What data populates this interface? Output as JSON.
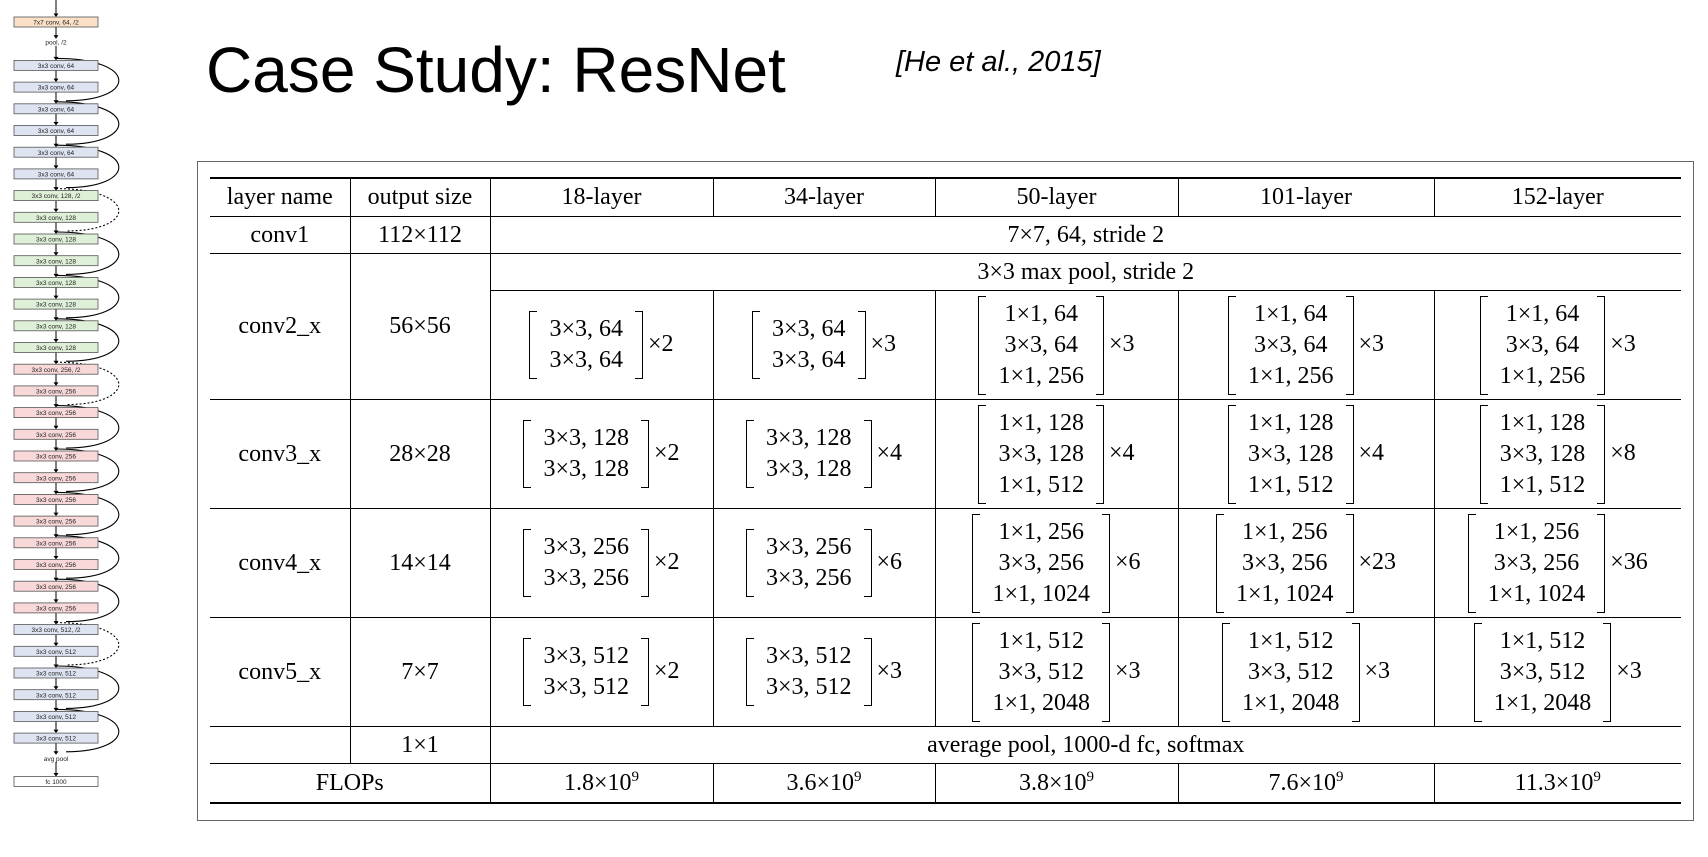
{
  "title": "Case Study: ResNet",
  "citation": "[He et al., 2015]",
  "architecture": {
    "blocks": [
      {
        "label": "7x7 conv, 64, /2",
        "color": "#fbe0c8"
      },
      {
        "label": "pool, /2",
        "color": null
      },
      {
        "label": "3x3 conv, 64",
        "color": "#dde3f0"
      },
      {
        "label": "3x3 conv, 64",
        "color": "#dde3f0"
      },
      {
        "label": "3x3 conv, 64",
        "color": "#dde3f0"
      },
      {
        "label": "3x3 conv, 64",
        "color": "#dde3f0"
      },
      {
        "label": "3x3 conv, 64",
        "color": "#dde3f0"
      },
      {
        "label": "3x3 conv, 64",
        "color": "#dde3f0"
      },
      {
        "label": "3x3 conv, 128, /2",
        "color": "#dff0d8"
      },
      {
        "label": "3x3 conv, 128",
        "color": "#dff0d8"
      },
      {
        "label": "3x3 conv, 128",
        "color": "#dff0d8"
      },
      {
        "label": "3x3 conv, 128",
        "color": "#dff0d8"
      },
      {
        "label": "3x3 conv, 128",
        "color": "#dff0d8"
      },
      {
        "label": "3x3 conv, 128",
        "color": "#dff0d8"
      },
      {
        "label": "3x3 conv, 128",
        "color": "#dff0d8"
      },
      {
        "label": "3x3 conv, 128",
        "color": "#dff0d8"
      },
      {
        "label": "3x3 conv, 256, /2",
        "color": "#f8d8d8"
      },
      {
        "label": "3x3 conv, 256",
        "color": "#f8d8d8"
      },
      {
        "label": "3x3 conv, 256",
        "color": "#f8d8d8"
      },
      {
        "label": "3x3 conv, 256",
        "color": "#f8d8d8"
      },
      {
        "label": "3x3 conv, 256",
        "color": "#f8d8d8"
      },
      {
        "label": "3x3 conv, 256",
        "color": "#f8d8d8"
      },
      {
        "label": "3x3 conv, 256",
        "color": "#f8d8d8"
      },
      {
        "label": "3x3 conv, 256",
        "color": "#f8d8d8"
      },
      {
        "label": "3x3 conv, 256",
        "color": "#f8d8d8"
      },
      {
        "label": "3x3 conv, 256",
        "color": "#f8d8d8"
      },
      {
        "label": "3x3 conv, 256",
        "color": "#f8d8d8"
      },
      {
        "label": "3x3 conv, 256",
        "color": "#f8d8d8"
      },
      {
        "label": "3x3 conv, 512, /2",
        "color": "#dde3f0"
      },
      {
        "label": "3x3 conv, 512",
        "color": "#dde3f0"
      },
      {
        "label": "3x3 conv, 512",
        "color": "#dde3f0"
      },
      {
        "label": "3x3 conv, 512",
        "color": "#dde3f0"
      },
      {
        "label": "3x3 conv, 512",
        "color": "#dde3f0"
      },
      {
        "label": "3x3 conv, 512",
        "color": "#dde3f0"
      },
      {
        "label": "avg pool",
        "color": null
      },
      {
        "label": "fc 1000",
        "color": "#ffffff"
      }
    ],
    "skips": [
      {
        "from": 2,
        "dashed": false
      },
      {
        "from": 4,
        "dashed": false
      },
      {
        "from": 6,
        "dashed": false
      },
      {
        "from": 8,
        "dashed": true
      },
      {
        "from": 10,
        "dashed": false
      },
      {
        "from": 12,
        "dashed": false
      },
      {
        "from": 14,
        "dashed": false
      },
      {
        "from": 16,
        "dashed": true
      },
      {
        "from": 18,
        "dashed": false
      },
      {
        "from": 20,
        "dashed": false
      },
      {
        "from": 22,
        "dashed": false
      },
      {
        "from": 24,
        "dashed": false
      },
      {
        "from": 26,
        "dashed": false
      },
      {
        "from": 28,
        "dashed": true
      },
      {
        "from": 30,
        "dashed": false
      },
      {
        "from": 32,
        "dashed": false
      }
    ]
  },
  "table": {
    "headers": [
      "layer name",
      "output size",
      "18-layer",
      "34-layer",
      "50-layer",
      "101-layer",
      "152-layer"
    ],
    "conv1": {
      "name": "conv1",
      "size": "112×112",
      "desc": "7×7, 64, stride 2"
    },
    "pool": {
      "desc": "3×3 max pool, stride 2"
    },
    "stages": [
      {
        "name": "conv2_x",
        "size": "56×56",
        "cells": [
          {
            "lines": [
              "3×3, 64",
              "3×3, 64"
            ],
            "rep": "×2"
          },
          {
            "lines": [
              "3×3, 64",
              "3×3, 64"
            ],
            "rep": "×3"
          },
          {
            "lines": [
              "1×1, 64",
              "3×3, 64",
              "1×1, 256"
            ],
            "rep": "×3"
          },
          {
            "lines": [
              "1×1, 64",
              "3×3, 64",
              "1×1, 256"
            ],
            "rep": "×3"
          },
          {
            "lines": [
              "1×1, 64",
              "3×3, 64",
              "1×1, 256"
            ],
            "rep": "×3"
          }
        ]
      },
      {
        "name": "conv3_x",
        "size": "28×28",
        "cells": [
          {
            "lines": [
              "3×3, 128",
              "3×3, 128"
            ],
            "rep": "×2"
          },
          {
            "lines": [
              "3×3, 128",
              "3×3, 128"
            ],
            "rep": "×4"
          },
          {
            "lines": [
              "1×1, 128",
              "3×3, 128",
              "1×1, 512"
            ],
            "rep": "×4"
          },
          {
            "lines": [
              "1×1, 128",
              "3×3, 128",
              "1×1, 512"
            ],
            "rep": "×4"
          },
          {
            "lines": [
              "1×1, 128",
              "3×3, 128",
              "1×1, 512"
            ],
            "rep": "×8"
          }
        ]
      },
      {
        "name": "conv4_x",
        "size": "14×14",
        "cells": [
          {
            "lines": [
              "3×3, 256",
              "3×3, 256"
            ],
            "rep": "×2"
          },
          {
            "lines": [
              "3×3, 256",
              "3×3, 256"
            ],
            "rep": "×6"
          },
          {
            "lines": [
              "1×1, 256",
              "3×3, 256",
              "1×1, 1024"
            ],
            "rep": "×6"
          },
          {
            "lines": [
              "1×1, 256",
              "3×3, 256",
              "1×1, 1024"
            ],
            "rep": "×23"
          },
          {
            "lines": [
              "1×1, 256",
              "3×3, 256",
              "1×1, 1024"
            ],
            "rep": "×36"
          }
        ]
      },
      {
        "name": "conv5_x",
        "size": "7×7",
        "cells": [
          {
            "lines": [
              "3×3, 512",
              "3×3, 512"
            ],
            "rep": "×2"
          },
          {
            "lines": [
              "3×3, 512",
              "3×3, 512"
            ],
            "rep": "×3"
          },
          {
            "lines": [
              "1×1, 512",
              "3×3, 512",
              "1×1, 2048"
            ],
            "rep": "×3"
          },
          {
            "lines": [
              "1×1, 512",
              "3×3, 512",
              "1×1, 2048"
            ],
            "rep": "×3"
          },
          {
            "lines": [
              "1×1, 512",
              "3×3, 512",
              "1×1, 2048"
            ],
            "rep": "×3"
          }
        ]
      }
    ],
    "fc": {
      "name": "",
      "size": "1×1",
      "desc": "average pool, 1000-d fc, softmax"
    },
    "flops": {
      "label": "FLOPs",
      "values": [
        {
          "base": "1.8×10",
          "exp": "9"
        },
        {
          "base": "3.6×10",
          "exp": "9"
        },
        {
          "base": "3.8×10",
          "exp": "9"
        },
        {
          "base": "7.6×10",
          "exp": "9"
        },
        {
          "base": "11.3×10",
          "exp": "9"
        }
      ]
    }
  }
}
